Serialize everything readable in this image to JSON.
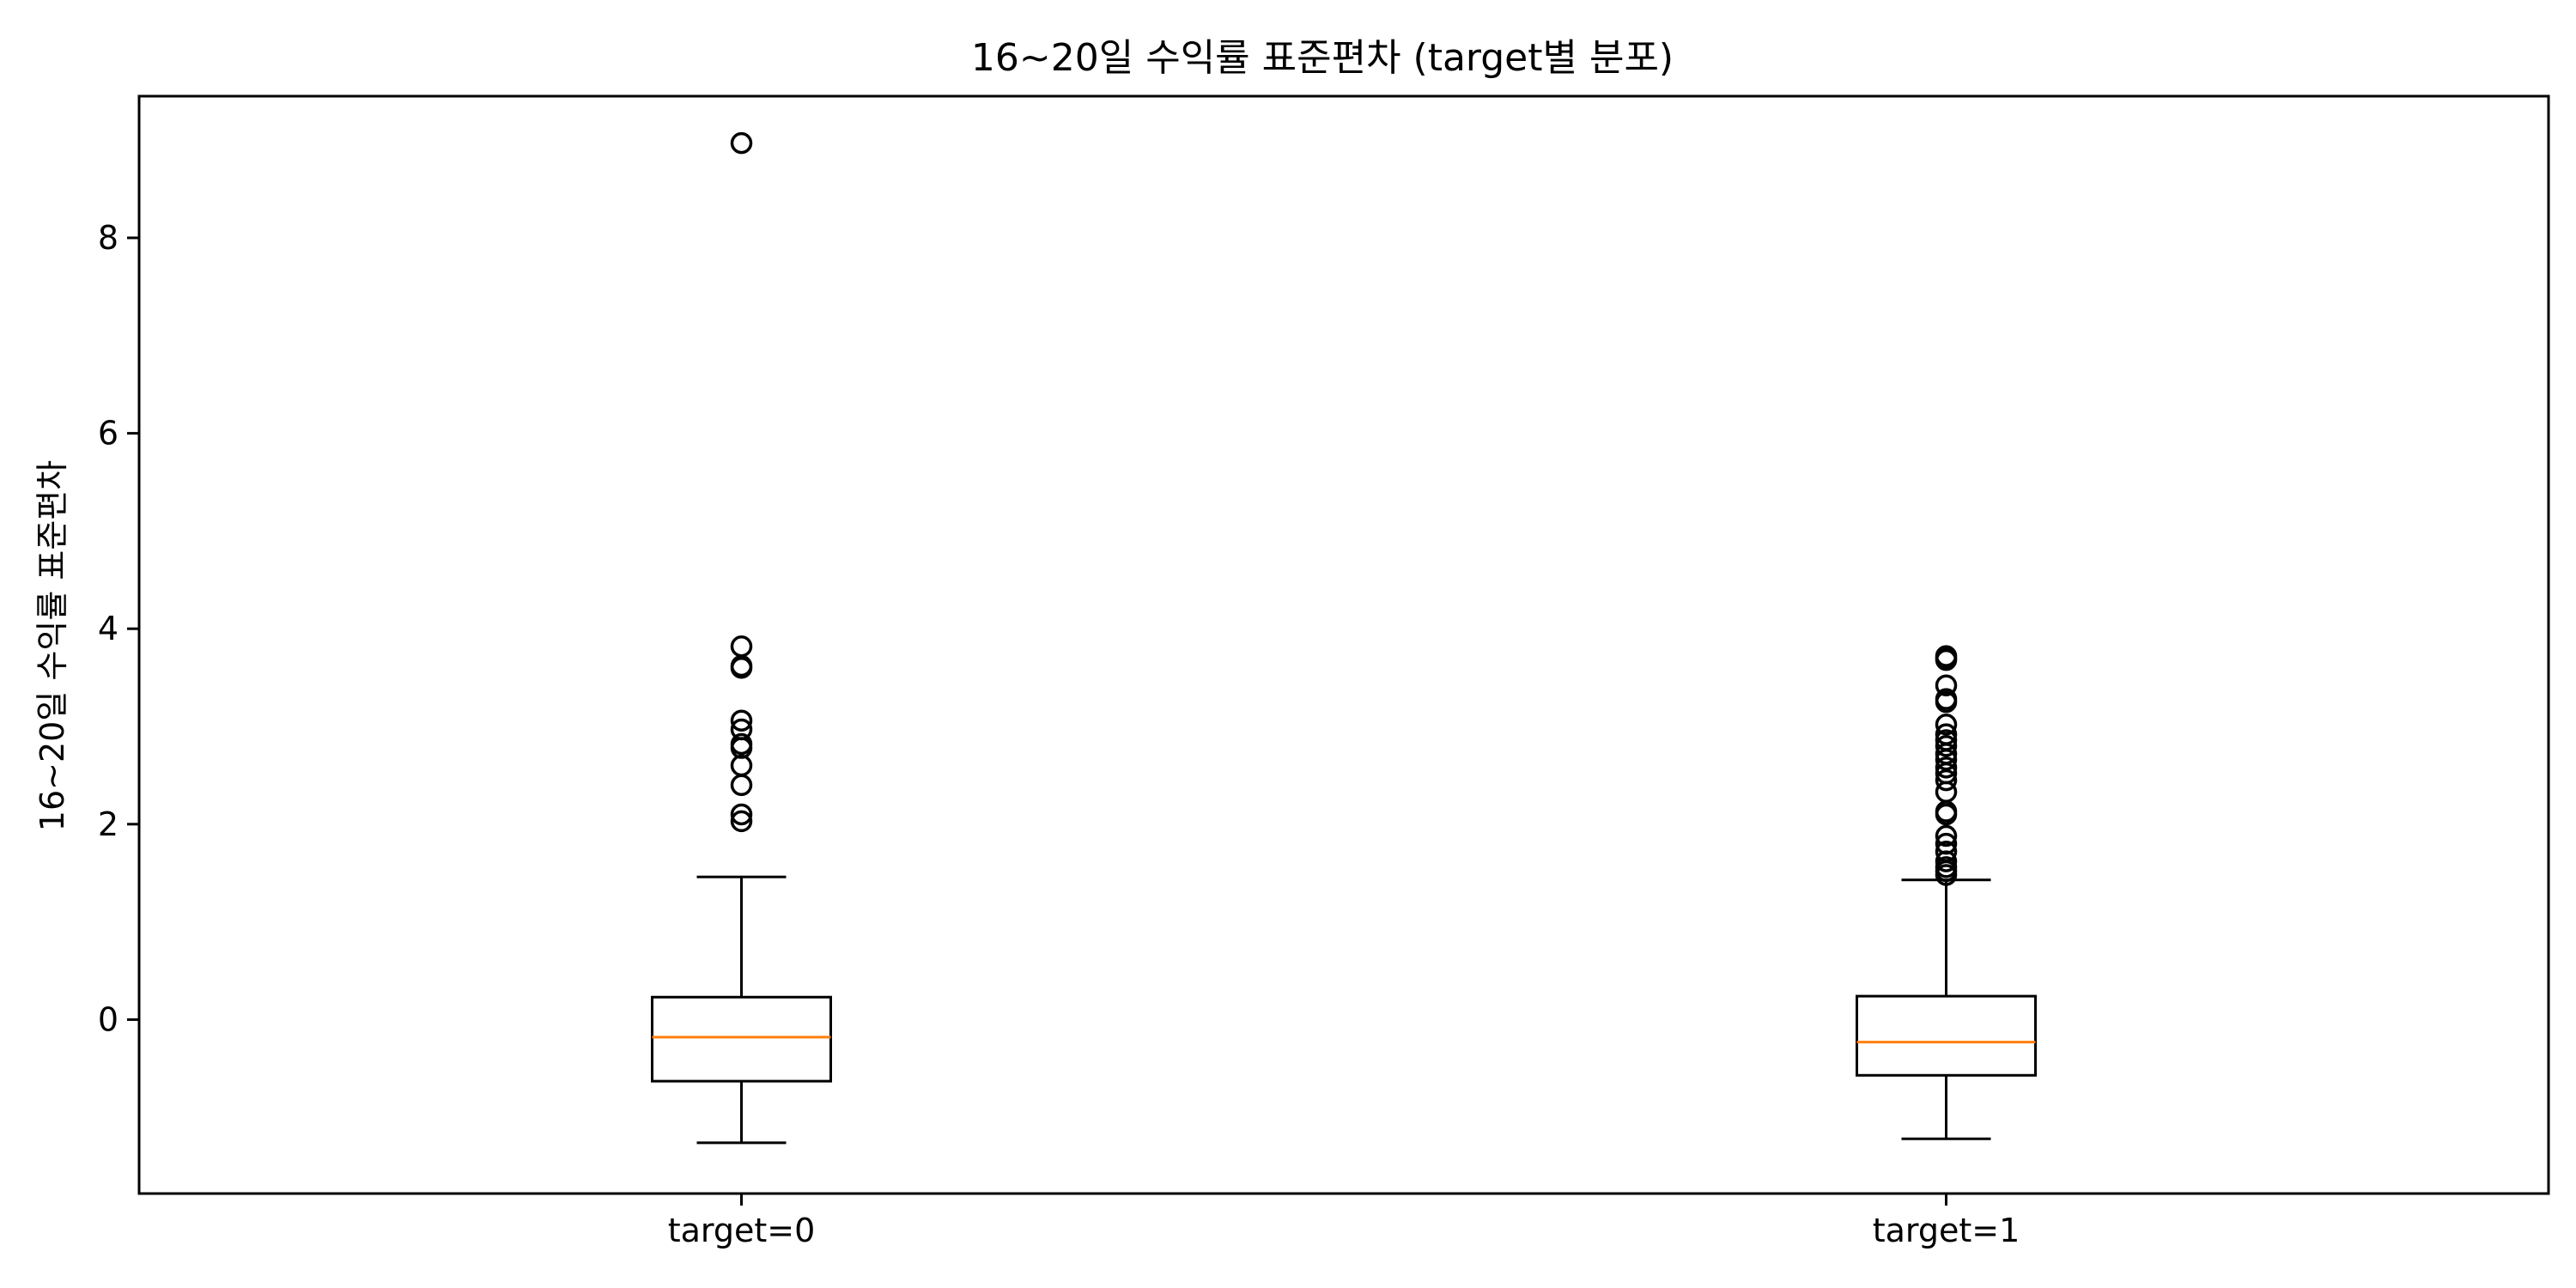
{
  "chart_data": {
    "type": "box",
    "title": "16~20일 수익률 표준편차 (target별 분포)",
    "xlabel": "",
    "ylabel": "16~20일 수익률 표준편차",
    "categories": [
      "target=0",
      "target=1"
    ],
    "ylim": [
      -1.78,
      9.45
    ],
    "yticks": [
      0,
      2,
      4,
      6,
      8
    ],
    "grid": false,
    "colors": {
      "box": "#000000",
      "median": "#ff7f0e",
      "outlier": "#000000",
      "background": "#ffffff"
    },
    "boxes": [
      {
        "category": "target=0",
        "whisker_low": -1.26,
        "q1": -0.63,
        "median": -0.18,
        "q3": 0.23,
        "whisker_high": 1.46,
        "outliers": [
          8.97,
          3.82,
          3.62,
          3.6,
          3.06,
          2.97,
          2.82,
          2.78,
          2.6,
          2.4,
          2.1,
          2.03
        ]
      },
      {
        "category": "target=1",
        "whisker_low": -1.22,
        "q1": -0.57,
        "median": -0.23,
        "q3": 0.24,
        "whisker_high": 1.43,
        "outliers": [
          3.72,
          3.7,
          3.68,
          3.42,
          3.28,
          3.25,
          3.02,
          2.92,
          2.86,
          2.8,
          2.72,
          2.66,
          2.58,
          2.52,
          2.45,
          2.33,
          2.13,
          2.1,
          1.88,
          1.8,
          1.72,
          1.62,
          1.56,
          1.52,
          1.48
        ]
      }
    ]
  }
}
